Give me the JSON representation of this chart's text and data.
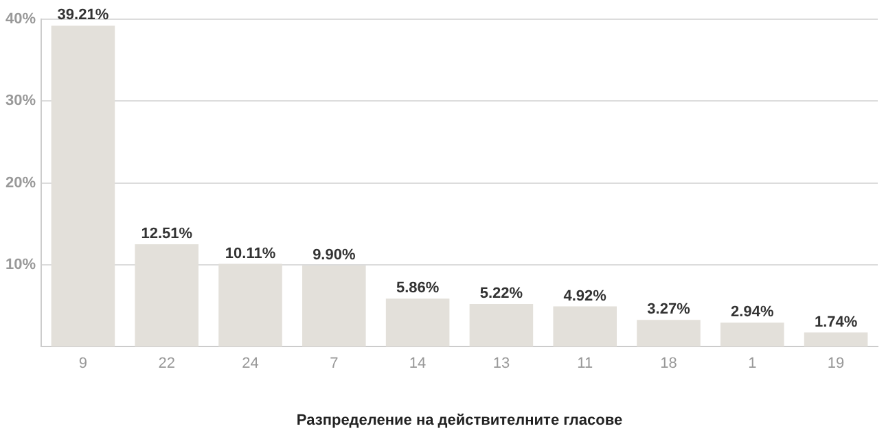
{
  "chart_data": {
    "type": "bar",
    "xlabel": "Разпределение на действителните гласове",
    "categories": [
      "9",
      "22",
      "24",
      "7",
      "14",
      "13",
      "11",
      "18",
      "1",
      "19"
    ],
    "values": [
      39.21,
      12.51,
      10.11,
      9.9,
      5.86,
      5.22,
      4.92,
      3.27,
      2.94,
      1.74
    ],
    "value_labels": [
      "39.21%",
      "12.51%",
      "10.11%",
      "9.90%",
      "5.86%",
      "5.22%",
      "4.92%",
      "3.27%",
      "2.94%",
      "1.74%"
    ],
    "color": "#e3e0da",
    "ylim": [
      0,
      40
    ],
    "yticks": [
      {
        "value": 10,
        "label": "10%"
      },
      {
        "value": 20,
        "label": "20%"
      },
      {
        "value": 30,
        "label": "30%"
      },
      {
        "value": 40,
        "label": "40%"
      }
    ],
    "grid": "y",
    "legend": false
  }
}
